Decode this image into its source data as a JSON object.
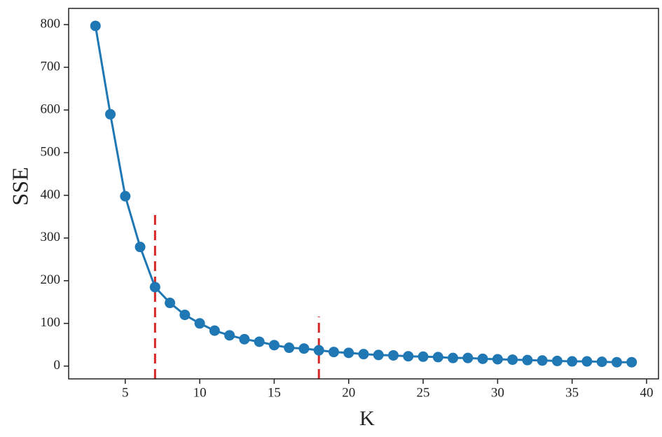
{
  "chart_data": {
    "type": "line",
    "xlabel": "K",
    "ylabel": "SSE",
    "x": [
      3,
      4,
      5,
      6,
      7,
      8,
      9,
      10,
      11,
      12,
      13,
      14,
      15,
      16,
      17,
      18,
      19,
      20,
      21,
      22,
      23,
      24,
      25,
      26,
      27,
      28,
      29,
      30,
      31,
      32,
      33,
      34,
      35,
      36,
      37,
      38,
      39
    ],
    "series": [
      {
        "color": "#1f77b4",
        "values": [
          797,
          590,
          398,
          279,
          185,
          148,
          120,
          100,
          83,
          72,
          63,
          57,
          49,
          43,
          41,
          37,
          33,
          31,
          28,
          26,
          25,
          23,
          22,
          21,
          19,
          19,
          17,
          16,
          15,
          14,
          13,
          12,
          11,
          11,
          10,
          9,
          9
        ]
      }
    ],
    "vlines": [
      {
        "x": 7,
        "ymax": 360,
        "color": "#d62728"
      },
      {
        "x": 18,
        "ymax": 116,
        "color": "#d62728"
      }
    ],
    "xlim": [
      1.2,
      40.8
    ],
    "xticks": [
      5,
      10,
      15,
      20,
      25,
      30,
      35,
      40
    ],
    "ylim": [
      -30,
      838
    ],
    "yticks": [
      0,
      100,
      200,
      300,
      400,
      500,
      600,
      700,
      800
    ]
  }
}
